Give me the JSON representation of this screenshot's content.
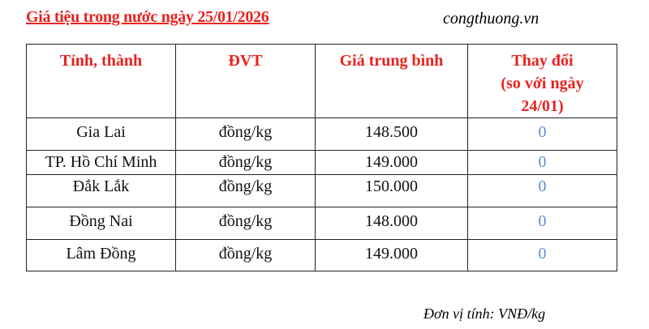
{
  "title": "Giá tiệu trong nước ngày 25/01/2026",
  "source": "congthuong.vn",
  "table": {
    "headers": [
      "Tỉnh, thành",
      "ĐVT",
      "Giá trung bình",
      "Thay đổi",
      "(so với ngày",
      "24/01)"
    ],
    "rows": [
      {
        "province": "Gia Lai",
        "unit": "đồng/kg",
        "price": "148.500",
        "change": "0"
      },
      {
        "province": "TP. Hồ Chí Minh",
        "unit": "đồng/kg",
        "price": "149.000",
        "change": "0"
      },
      {
        "province": "Đắk Lắk",
        "unit": "đồng/kg",
        "price": "150.000",
        "change": "0"
      },
      {
        "province": "Đồng Nai",
        "unit": "đồng/kg",
        "price": "148.000",
        "change": "0"
      },
      {
        "province": "Lâm Đồng",
        "unit": "đồng/kg",
        "price": "149.000",
        "change": "0"
      }
    ]
  },
  "note": "Đơn vị tính: VNĐ/kg",
  "colors": {
    "header": "#e8231f",
    "change": "#5a8fd6"
  }
}
